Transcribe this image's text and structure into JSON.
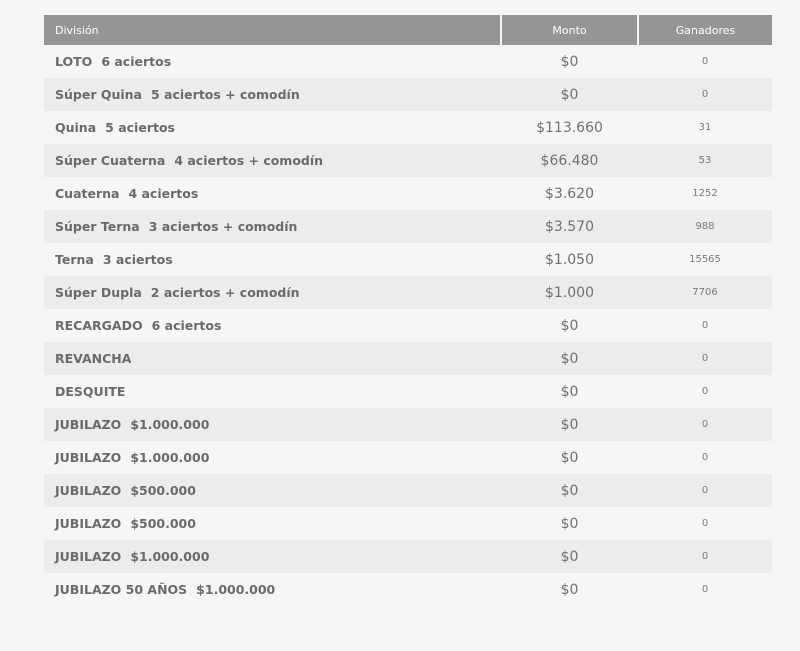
{
  "table": {
    "headers": {
      "division": "División",
      "monto": "Monto",
      "ganadores": "Ganadores"
    },
    "rows": [
      {
        "name": "LOTO",
        "detail": "6 aciertos",
        "monto": "$0",
        "ganadores": "0"
      },
      {
        "name": "Súper Quina",
        "detail": "5 aciertos + comodín",
        "monto": "$0",
        "ganadores": "0"
      },
      {
        "name": "Quina",
        "detail": "5 aciertos",
        "monto": "$113.660",
        "ganadores": "31"
      },
      {
        "name": "Súper Cuaterna",
        "detail": "4 aciertos + comodín",
        "monto": "$66.480",
        "ganadores": "53"
      },
      {
        "name": "Cuaterna",
        "detail": "4 aciertos",
        "monto": "$3.620",
        "ganadores": "1252"
      },
      {
        "name": "Súper Terna",
        "detail": "3 aciertos + comodín",
        "monto": "$3.570",
        "ganadores": "988"
      },
      {
        "name": "Terna",
        "detail": "3 aciertos",
        "monto": "$1.050",
        "ganadores": "15565"
      },
      {
        "name": "Súper Dupla",
        "detail": "2 aciertos + comodín",
        "monto": "$1.000",
        "ganadores": "7706"
      },
      {
        "name": "RECARGADO",
        "detail": "6 aciertos",
        "monto": "$0",
        "ganadores": "0"
      },
      {
        "name": "REVANCHA",
        "detail": "",
        "monto": "$0",
        "ganadores": "0"
      },
      {
        "name": "DESQUITE",
        "detail": "",
        "monto": "$0",
        "ganadores": "0"
      },
      {
        "name": "JUBILAZO",
        "detail": "$1.000.000",
        "monto": "$0",
        "ganadores": "0"
      },
      {
        "name": "JUBILAZO",
        "detail": "$1.000.000",
        "monto": "$0",
        "ganadores": "0"
      },
      {
        "name": "JUBILAZO",
        "detail": "$500.000",
        "monto": "$0",
        "ganadores": "0"
      },
      {
        "name": "JUBILAZO",
        "detail": "$500.000",
        "monto": "$0",
        "ganadores": "0"
      },
      {
        "name": "JUBILAZO",
        "detail": "$1.000.000",
        "monto": "$0",
        "ganadores": "0"
      },
      {
        "name": "JUBILAZO 50 AÑOS",
        "detail": "$1.000.000",
        "monto": "$0",
        "ganadores": "0"
      }
    ]
  }
}
